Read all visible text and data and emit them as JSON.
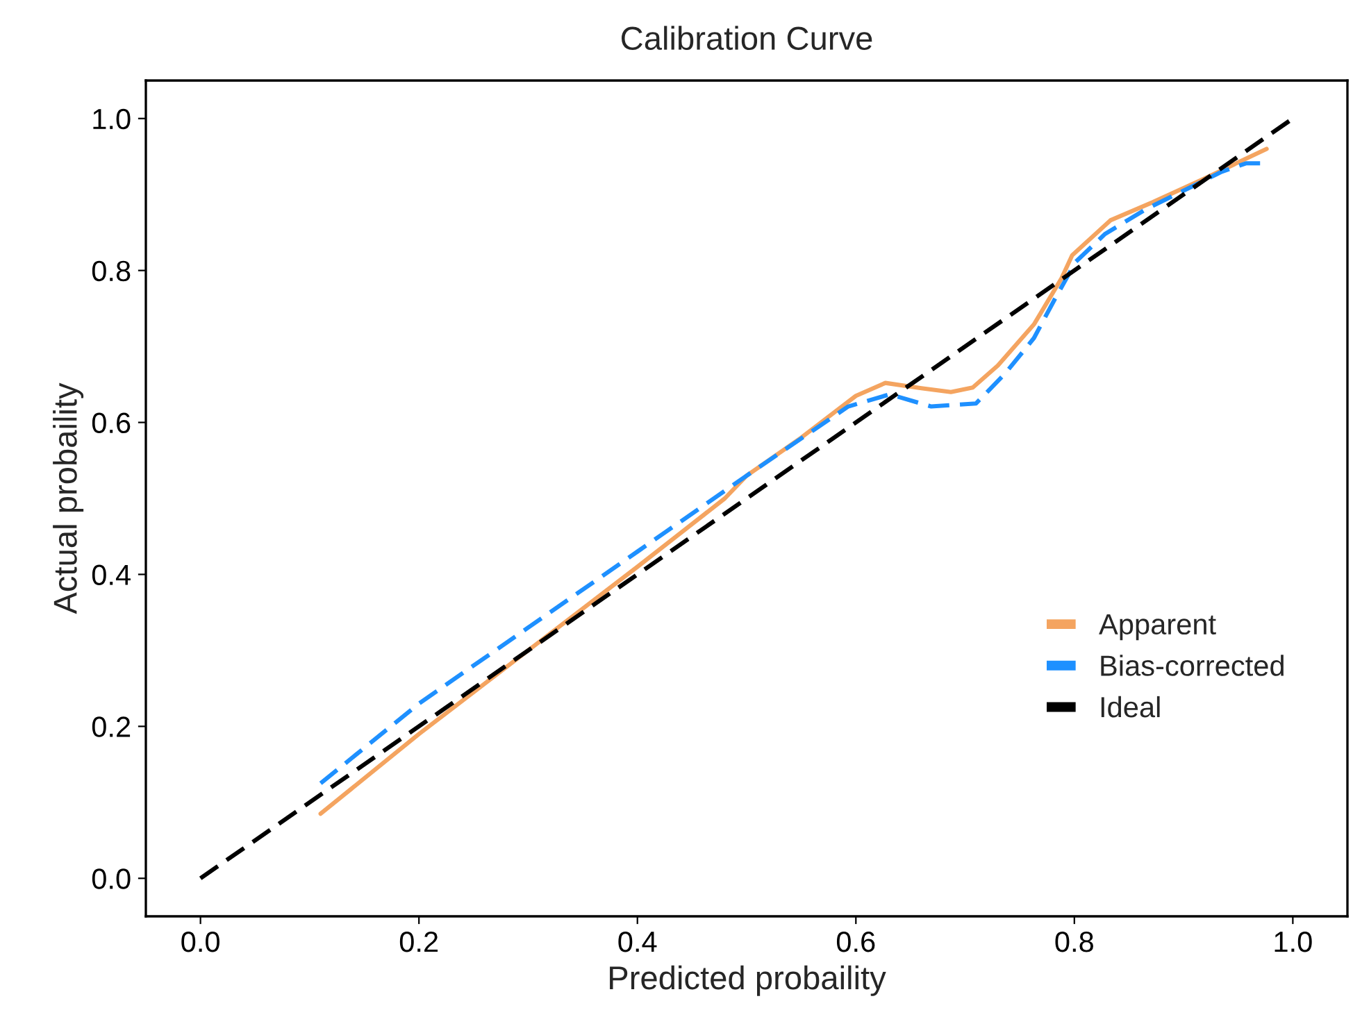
{
  "chart_data": {
    "type": "line",
    "title": "Calibration Curve",
    "xlabel": "Predicted probaility",
    "ylabel": "Actual probaility",
    "xlim": [
      -0.05,
      1.05
    ],
    "ylim": [
      -0.05,
      1.05
    ],
    "xticks": [
      {
        "value": 0,
        "label": "0.0"
      },
      {
        "value": 0.2,
        "label": "0.2"
      },
      {
        "value": 0.4,
        "label": "0.4"
      },
      {
        "value": 0.6,
        "label": "0.6"
      },
      {
        "value": 0.8,
        "label": "0.8"
      },
      {
        "value": 1,
        "label": "1.0"
      }
    ],
    "yticks": [
      {
        "value": 0,
        "label": "0.0"
      },
      {
        "value": 0.2,
        "label": "0.2"
      },
      {
        "value": 0.4,
        "label": "0.4"
      },
      {
        "value": 0.6,
        "label": "0.6"
      },
      {
        "value": 0.8,
        "label": "0.8"
      },
      {
        "value": 1,
        "label": "1.0"
      }
    ],
    "grid": false,
    "legend": "bottom right",
    "marker": "none",
    "series": [
      {
        "name": "Apparent",
        "color": "#f4a460",
        "line_style": "solid",
        "x": [
          0.11,
          0.2,
          0.3,
          0.4,
          0.48,
          0.5,
          0.55,
          0.6,
          0.627,
          0.66,
          0.687,
          0.707,
          0.73,
          0.763,
          0.788,
          0.798,
          0.833,
          0.872,
          0.919,
          0.976
        ],
        "values": [
          0.085,
          0.19,
          0.3,
          0.41,
          0.5,
          0.53,
          0.58,
          0.635,
          0.652,
          0.645,
          0.64,
          0.646,
          0.675,
          0.729,
          0.789,
          0.82,
          0.866,
          0.89,
          0.921,
          0.96
        ]
      },
      {
        "name": "Bias-corrected",
        "color": "#1e90ff",
        "line_style": "dashed",
        "x": [
          0.11,
          0.2,
          0.3,
          0.4,
          0.5,
          0.593,
          0.631,
          0.669,
          0.71,
          0.737,
          0.763,
          0.782,
          0.801,
          0.828,
          0.866,
          0.897,
          0.935,
          0.957,
          0.973
        ],
        "values": [
          0.125,
          0.23,
          0.33,
          0.43,
          0.53,
          0.621,
          0.637,
          0.621,
          0.625,
          0.665,
          0.711,
          0.762,
          0.811,
          0.848,
          0.881,
          0.903,
          0.93,
          0.941,
          0.941
        ]
      },
      {
        "name": "Ideal",
        "color": "#000000",
        "line_style": "dashed",
        "x": [
          0,
          1
        ],
        "values": [
          0,
          1
        ]
      }
    ]
  }
}
